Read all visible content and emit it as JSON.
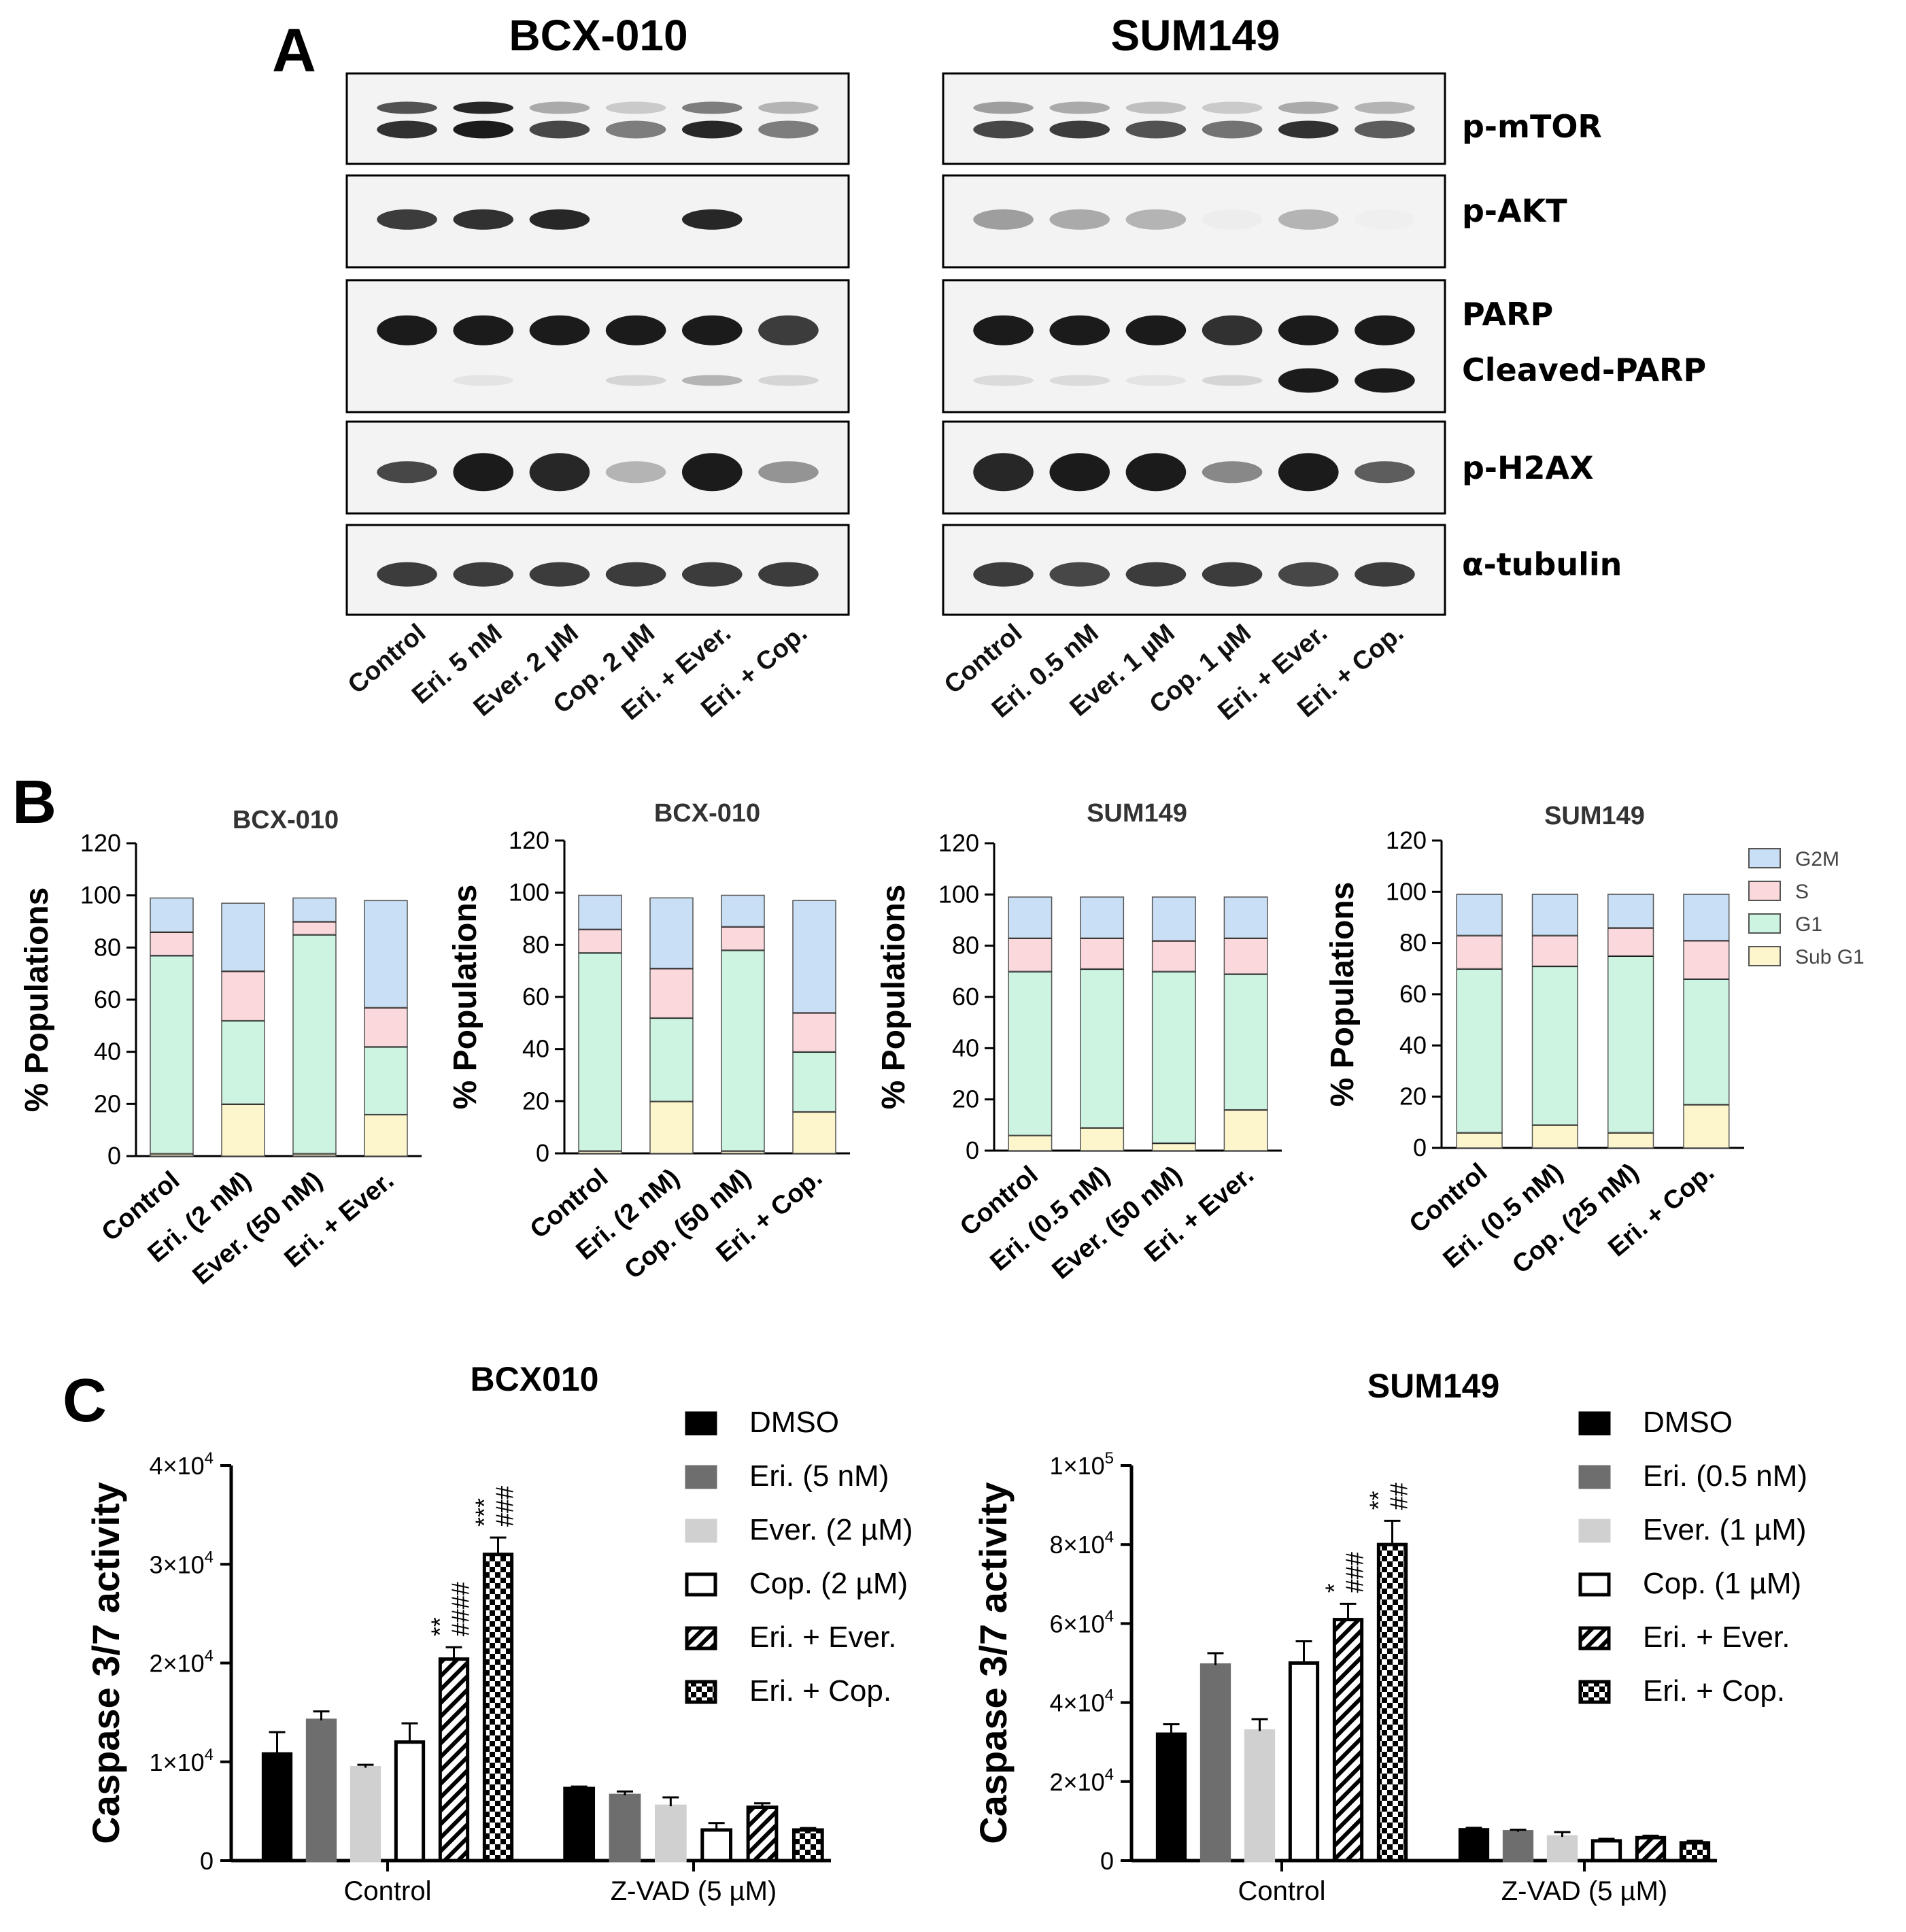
{
  "panels": {
    "a": "A",
    "b": "B",
    "c": "C"
  },
  "blot": {
    "left": {
      "title": "BCX-010",
      "lanes": [
        "Control",
        "Eri. 5 nM",
        "Ever. 2 µM",
        "Cop. 2 µM",
        "Eri. + Ever.",
        "Eri. + Cop."
      ]
    },
    "right": {
      "title": "SUM149",
      "lanes": [
        "Control",
        "Eri. 0.5 nM",
        "Ever. 1 µM",
        "Cop. 1 µM",
        "Eri. + Ever.",
        "Eri. + Cop."
      ]
    },
    "proteins": {
      "p_mtor": "p-mTOR",
      "p_akt": "p-AKT",
      "parp": "PARP",
      "cleaved_parp": "Cleaved-PARP",
      "p_h2ax": "p-H2AX",
      "tubulin": "α-tubulin"
    }
  },
  "colors": {
    "sub_g1": "#fdf6cc",
    "g1": "#cdf3e1",
    "s": "#fbd8dc",
    "g2m": "#c9dff6",
    "dmso": "#000000",
    "eri": "#6e6e6e",
    "ever": "#d0d0d0"
  },
  "chart_data": [
    {
      "type": "bar",
      "stacked": true,
      "title": "BCX-010",
      "ylabel": "% Populations",
      "ylim": [
        0,
        120
      ],
      "yticks": [
        "0",
        "20",
        "40",
        "60",
        "80",
        "100",
        "120"
      ],
      "categories": [
        "Control",
        "Eri. (2 nM)",
        "Ever. (50 nM)",
        "Eri. + Ever."
      ],
      "series": [
        {
          "name": "Sub G1",
          "values": [
            1,
            20,
            1,
            16
          ]
        },
        {
          "name": "G1",
          "values": [
            76,
            32,
            84,
            26
          ]
        },
        {
          "name": "S",
          "values": [
            9,
            19,
            5,
            15
          ]
        },
        {
          "name": "G2M",
          "values": [
            13,
            26,
            9,
            41
          ]
        }
      ]
    },
    {
      "type": "bar",
      "stacked": true,
      "title": "BCX-010",
      "ylabel": "% Populations",
      "ylim": [
        0,
        120
      ],
      "yticks": [
        "0",
        "20",
        "40",
        "60",
        "80",
        "100",
        "120"
      ],
      "categories": [
        "Control",
        "Eri. (2 nM)",
        "Cop. (50 nM)",
        "Eri. + Cop."
      ],
      "series": [
        {
          "name": "Sub G1",
          "values": [
            1,
            20,
            1,
            16
          ]
        },
        {
          "name": "G1",
          "values": [
            76,
            32,
            77,
            23
          ]
        },
        {
          "name": "S",
          "values": [
            9,
            19,
            9,
            15
          ]
        },
        {
          "name": "G2M",
          "values": [
            13,
            27,
            12,
            43
          ]
        }
      ]
    },
    {
      "type": "bar",
      "stacked": true,
      "title": "SUM149",
      "ylabel": "% Populations",
      "ylim": [
        0,
        120
      ],
      "yticks": [
        "0",
        "20",
        "40",
        "60",
        "80",
        "100",
        "120"
      ],
      "categories": [
        "Control",
        "Eri. (0.5 nM)",
        "Ever. (50 nM)",
        "Eri. + Ever."
      ],
      "series": [
        {
          "name": "Sub G1",
          "values": [
            6,
            9,
            3,
            16
          ]
        },
        {
          "name": "G1",
          "values": [
            64,
            62,
            67,
            53
          ]
        },
        {
          "name": "S",
          "values": [
            13,
            12,
            12,
            14
          ]
        },
        {
          "name": "G2M",
          "values": [
            16,
            16,
            17,
            16
          ]
        }
      ]
    },
    {
      "type": "bar",
      "stacked": true,
      "title": "SUM149",
      "ylabel": "% Populations",
      "ylim": [
        0,
        120
      ],
      "yticks": [
        "0",
        "20",
        "40",
        "60",
        "80",
        "100",
        "120"
      ],
      "categories": [
        "Control",
        "Eri. (0.5 nM)",
        "Cop. (25 nM)",
        "Eri. + Cop."
      ],
      "legend": [
        "G2M",
        "S",
        "G1",
        "Sub G1"
      ],
      "series": [
        {
          "name": "Sub G1",
          "values": [
            6,
            9,
            6,
            17
          ]
        },
        {
          "name": "G1",
          "values": [
            64,
            62,
            69,
            49
          ]
        },
        {
          "name": "S",
          "values": [
            13,
            12,
            11,
            15
          ]
        },
        {
          "name": "G2M",
          "values": [
            16,
            16,
            13,
            18
          ]
        }
      ]
    },
    {
      "type": "bar",
      "title": "BCX010",
      "ylabel": "Caspase 3/7 activity",
      "ylim": [
        0,
        40000
      ],
      "ytick_values": [
        0,
        10000,
        20000,
        30000,
        40000
      ],
      "yticks": [
        {
          "base": "0",
          "exp": ""
        },
        {
          "base": "1×10",
          "exp": "4"
        },
        {
          "base": "2×10",
          "exp": "4"
        },
        {
          "base": "3×10",
          "exp": "4"
        },
        {
          "base": "4×10",
          "exp": "4"
        }
      ],
      "categories": [
        "Control",
        "Z-VAD (5 µM)"
      ],
      "series": [
        {
          "name": "DMSO",
          "values": [
            10800,
            7300
          ],
          "errors": [
            2200,
            200
          ]
        },
        {
          "name": "Eri. (5 nM)",
          "values": [
            14200,
            6600
          ],
          "errors": [
            900,
            400
          ]
        },
        {
          "name": "Ever. (2 µM)",
          "values": [
            9400,
            5500
          ],
          "errors": [
            300,
            900
          ]
        },
        {
          "name": "Cop. (2 µM)",
          "values": [
            12000,
            3100
          ],
          "errors": [
            1900,
            700
          ]
        },
        {
          "name": "Eri. + Ever.",
          "values": [
            20400,
            5400
          ],
          "errors": [
            1200,
            400
          ]
        },
        {
          "name": "Eri. + Cop.",
          "values": [
            31000,
            3100
          ],
          "errors": [
            1700,
            200
          ]
        }
      ],
      "annotations": [
        {
          "series": 4,
          "category": 0,
          "star": "**",
          "hash": "####"
        },
        {
          "series": 5,
          "category": 0,
          "star": "***",
          "hash": "###"
        }
      ]
    },
    {
      "type": "bar",
      "title": "SUM149",
      "ylabel": "Caspase 3/7 activity",
      "ylim": [
        0,
        100000
      ],
      "ytick_values": [
        0,
        20000,
        40000,
        60000,
        80000,
        100000
      ],
      "yticks": [
        {
          "base": "0",
          "exp": ""
        },
        {
          "base": "2×10",
          "exp": "4"
        },
        {
          "base": "4×10",
          "exp": "4"
        },
        {
          "base": "6×10",
          "exp": "4"
        },
        {
          "base": "8×10",
          "exp": "4"
        },
        {
          "base": "1×10",
          "exp": "5"
        }
      ],
      "categories": [
        "Control",
        "Z-VAD (5 µM)"
      ],
      "series": [
        {
          "name": "DMSO",
          "values": [
            32000,
            7800
          ],
          "errors": [
            2500,
            500
          ]
        },
        {
          "name": "Eri. (0.5 nM)",
          "values": [
            49500,
            7300
          ],
          "errors": [
            3000,
            500
          ]
        },
        {
          "name": "Ever. (1 µM)",
          "values": [
            32800,
            6000
          ],
          "errors": [
            3000,
            1200
          ]
        },
        {
          "name": "Cop. (1 µM)",
          "values": [
            50000,
            5000
          ],
          "errors": [
            5500,
            500
          ]
        },
        {
          "name": "Eri. + Ever.",
          "values": [
            61000,
            5800
          ],
          "errors": [
            4000,
            500
          ]
        },
        {
          "name": "Eri. + Cop.",
          "values": [
            80000,
            4500
          ],
          "errors": [
            6000,
            500
          ]
        }
      ],
      "annotations": [
        {
          "series": 4,
          "category": 0,
          "star": "*",
          "hash": "###"
        },
        {
          "series": 5,
          "category": 0,
          "star": "**",
          "hash": "##"
        }
      ]
    }
  ]
}
